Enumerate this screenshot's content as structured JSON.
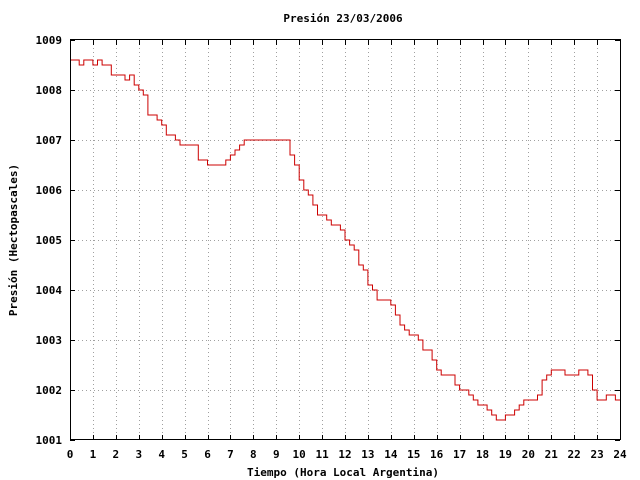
{
  "chart_data": {
    "type": "line",
    "title": "Presión 23/03/2006",
    "xlabel": "Tiempo (Hora Local Argentina)",
    "ylabel": "Presión (Hectopascales)",
    "xlim": [
      0,
      24
    ],
    "ylim": [
      1001,
      1009
    ],
    "x_ticks": [
      "0",
      "1",
      "2",
      "3",
      "4",
      "5",
      "6",
      "7",
      "8",
      "9",
      "10",
      "11",
      "12",
      "13",
      "14",
      "15",
      "16",
      "17",
      "18",
      "19",
      "20",
      "21",
      "22",
      "23",
      "24"
    ],
    "y_ticks": [
      "1001",
      "1002",
      "1003",
      "1004",
      "1005",
      "1006",
      "1007",
      "1008",
      "1009"
    ],
    "grid": true,
    "legend": "none",
    "colors": {
      "series": "#cc0000",
      "grid": "#a0a0a0"
    },
    "series": [
      {
        "x": [
          0,
          0.2,
          0.4,
          0.6,
          0.8,
          1.0,
          1.2,
          1.4,
          1.6,
          1.8,
          2.0,
          2.2,
          2.4,
          2.6,
          2.8,
          3.0,
          3.2,
          3.4,
          3.6,
          3.8,
          4.0,
          4.2,
          4.4,
          4.6,
          4.8,
          5.0,
          5.2,
          5.4,
          5.6,
          5.8,
          6.0,
          6.2,
          6.4,
          6.6,
          6.8,
          7.0,
          7.2,
          7.4,
          7.6,
          7.8,
          8.0,
          8.2,
          8.4,
          8.6,
          8.8,
          9.0,
          9.2,
          9.4,
          9.6,
          9.8,
          10.0,
          10.2,
          10.4,
          10.6,
          10.8,
          11.0,
          11.2,
          11.4,
          11.6,
          11.8,
          12.0,
          12.2,
          12.4,
          12.6,
          12.8,
          13.0,
          13.2,
          13.4,
          13.6,
          13.8,
          14.0,
          14.2,
          14.4,
          14.6,
          14.8,
          15.0,
          15.2,
          15.4,
          15.6,
          15.8,
          16.0,
          16.2,
          16.4,
          16.6,
          16.8,
          17.0,
          17.2,
          17.4,
          17.6,
          17.8,
          18.0,
          18.2,
          18.4,
          18.6,
          18.8,
          19.0,
          19.2,
          19.4,
          19.6,
          19.8,
          20.0,
          20.2,
          20.4,
          20.6,
          20.8,
          21.0,
          21.2,
          21.4,
          21.6,
          21.8,
          22.0,
          22.2,
          22.4,
          22.6,
          22.8,
          23.0,
          23.2,
          23.4,
          23.6,
          23.8,
          24.0
        ],
        "values": [
          1008.6,
          1008.6,
          1008.5,
          1008.6,
          1008.6,
          1008.5,
          1008.6,
          1008.5,
          1008.5,
          1008.3,
          1008.3,
          1008.3,
          1008.2,
          1008.3,
          1008.1,
          1008.0,
          1007.9,
          1007.5,
          1007.5,
          1007.4,
          1007.3,
          1007.1,
          1007.1,
          1007.0,
          1006.9,
          1006.9,
          1006.9,
          1006.9,
          1006.6,
          1006.6,
          1006.5,
          1006.5,
          1006.5,
          1006.5,
          1006.6,
          1006.7,
          1006.8,
          1006.9,
          1007.0,
          1007.0,
          1007.0,
          1007.0,
          1007.0,
          1007.0,
          1007.0,
          1007.0,
          1007.0,
          1007.0,
          1006.7,
          1006.5,
          1006.2,
          1006.0,
          1005.9,
          1005.7,
          1005.5,
          1005.5,
          1005.4,
          1005.3,
          1005.3,
          1005.2,
          1005.0,
          1004.9,
          1004.8,
          1004.5,
          1004.4,
          1004.1,
          1004.0,
          1003.8,
          1003.8,
          1003.8,
          1003.7,
          1003.5,
          1003.3,
          1003.2,
          1003.1,
          1003.1,
          1003.0,
          1002.8,
          1002.8,
          1002.6,
          1002.4,
          1002.3,
          1002.3,
          1002.3,
          1002.1,
          1002.0,
          1002.0,
          1001.9,
          1001.8,
          1001.7,
          1001.7,
          1001.6,
          1001.5,
          1001.4,
          1001.4,
          1001.5,
          1001.5,
          1001.6,
          1001.7,
          1001.8,
          1001.8,
          1001.8,
          1001.9,
          1002.2,
          1002.3,
          1002.4,
          1002.4,
          1002.4,
          1002.3,
          1002.3,
          1002.3,
          1002.4,
          1002.4,
          1002.3,
          1002.0,
          1001.8,
          1001.8,
          1001.9,
          1001.9,
          1001.8,
          1001.8
        ]
      }
    ]
  }
}
